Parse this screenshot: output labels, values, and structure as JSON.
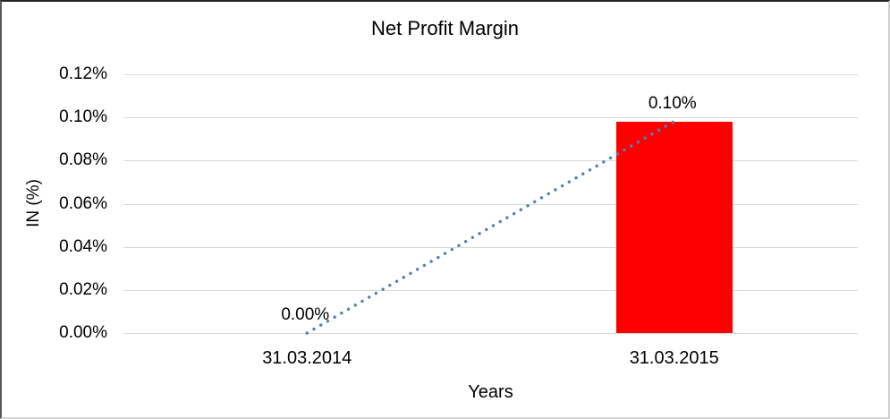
{
  "chart_data": {
    "type": "bar",
    "title": "Net Profit Margin",
    "xlabel": "Years",
    "ylabel": "IN (%)",
    "categories": [
      "31.03.2014",
      "31.03.2015"
    ],
    "series": [
      {
        "name": "Net Profit Margin",
        "values": [
          0.0,
          0.098
        ],
        "data_labels": [
          "0.00%",
          "0.10%"
        ],
        "color": "#ff0000"
      }
    ],
    "trendline": {
      "type": "linear",
      "style": "dotted",
      "color": "#4e81bd",
      "from_value": 0.0,
      "to_value": 0.098
    },
    "yticks": [
      {
        "value": 0.12,
        "label": "0.12%"
      },
      {
        "value": 0.1,
        "label": "0.10%"
      },
      {
        "value": 0.08,
        "label": "0.08%"
      },
      {
        "value": 0.06,
        "label": "0.06%"
      },
      {
        "value": 0.04,
        "label": "0.04%"
      },
      {
        "value": 0.02,
        "label": "0.02%"
      },
      {
        "value": 0.0,
        "label": "0.00%"
      }
    ],
    "ylim": [
      0,
      0.12
    ],
    "grid": true,
    "legend_position": "none",
    "gridline_color": "#d9d9d9",
    "bar_color": "#ff0000",
    "trend_color": "#4e81bd"
  }
}
